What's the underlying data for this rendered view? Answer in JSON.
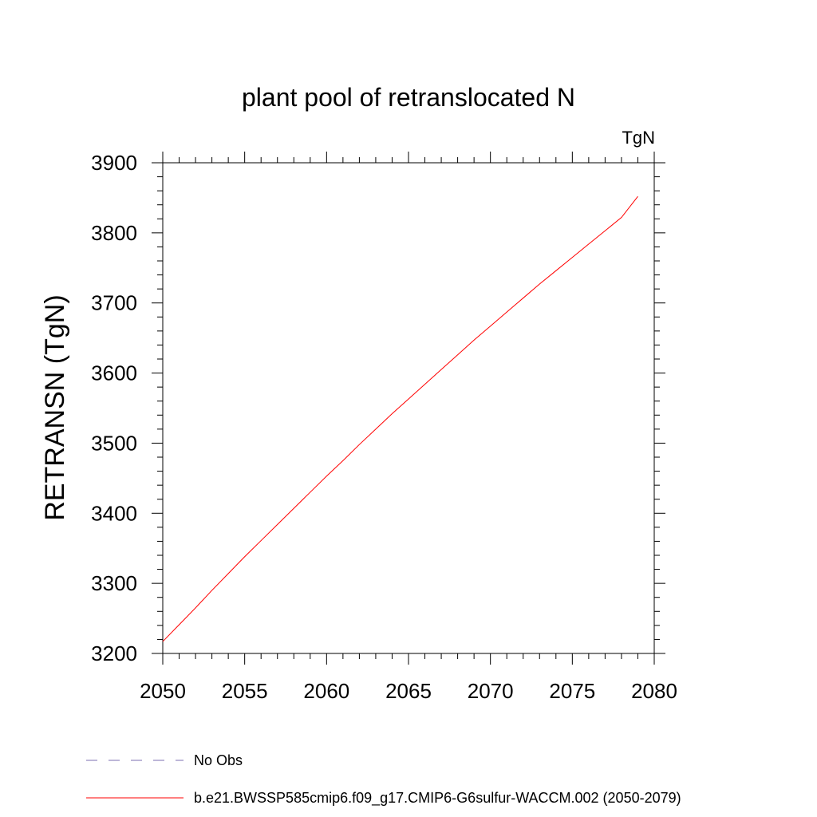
{
  "chart_data": {
    "type": "line",
    "title": "plant pool of retranslocated N",
    "units_label": "TgN",
    "xlabel": "",
    "ylabel": "RETRANSN  (TgN)",
    "xlim": [
      2050,
      2080
    ],
    "ylim": [
      3200,
      3900
    ],
    "x_ticks": [
      2050,
      2055,
      2060,
      2065,
      2070,
      2075,
      2080
    ],
    "y_ticks": [
      3200,
      3300,
      3400,
      3500,
      3600,
      3700,
      3800,
      3900
    ],
    "x_tick_labels": [
      "2050",
      "2055",
      "2060",
      "2065",
      "2070",
      "2075",
      "2080"
    ],
    "y_tick_labels": [
      "3200",
      "3300",
      "3400",
      "3500",
      "3600",
      "3700",
      "3800",
      "3900"
    ],
    "grid": false,
    "legend_placement": "bottom-left",
    "series": [
      {
        "name": "b.e21.BWSSP585cmip6.f09_g17.CMIP6-G6sulfur-WACCM.002 (2050-2079)",
        "color": "#ff0000",
        "dash": "solid",
        "x": [
          2050,
          2051,
          2052,
          2053,
          2054,
          2055,
          2056,
          2057,
          2058,
          2059,
          2060,
          2061,
          2062,
          2063,
          2064,
          2065,
          2066,
          2067,
          2068,
          2069,
          2070,
          2071,
          2072,
          2073,
          2074,
          2075,
          2076,
          2077,
          2078,
          2079
        ],
        "values": [
          3217,
          3241,
          3265,
          3290,
          3314,
          3338,
          3361,
          3384,
          3407,
          3430,
          3453,
          3475,
          3498,
          3520,
          3542,
          3563,
          3584,
          3605,
          3626,
          3647,
          3667,
          3687,
          3707,
          3727,
          3746,
          3765,
          3784,
          3803,
          3822,
          3852
        ]
      },
      {
        "name": "No Obs",
        "color": "#7b6fb0",
        "dash": "dashed",
        "x": [],
        "values": []
      }
    ]
  }
}
